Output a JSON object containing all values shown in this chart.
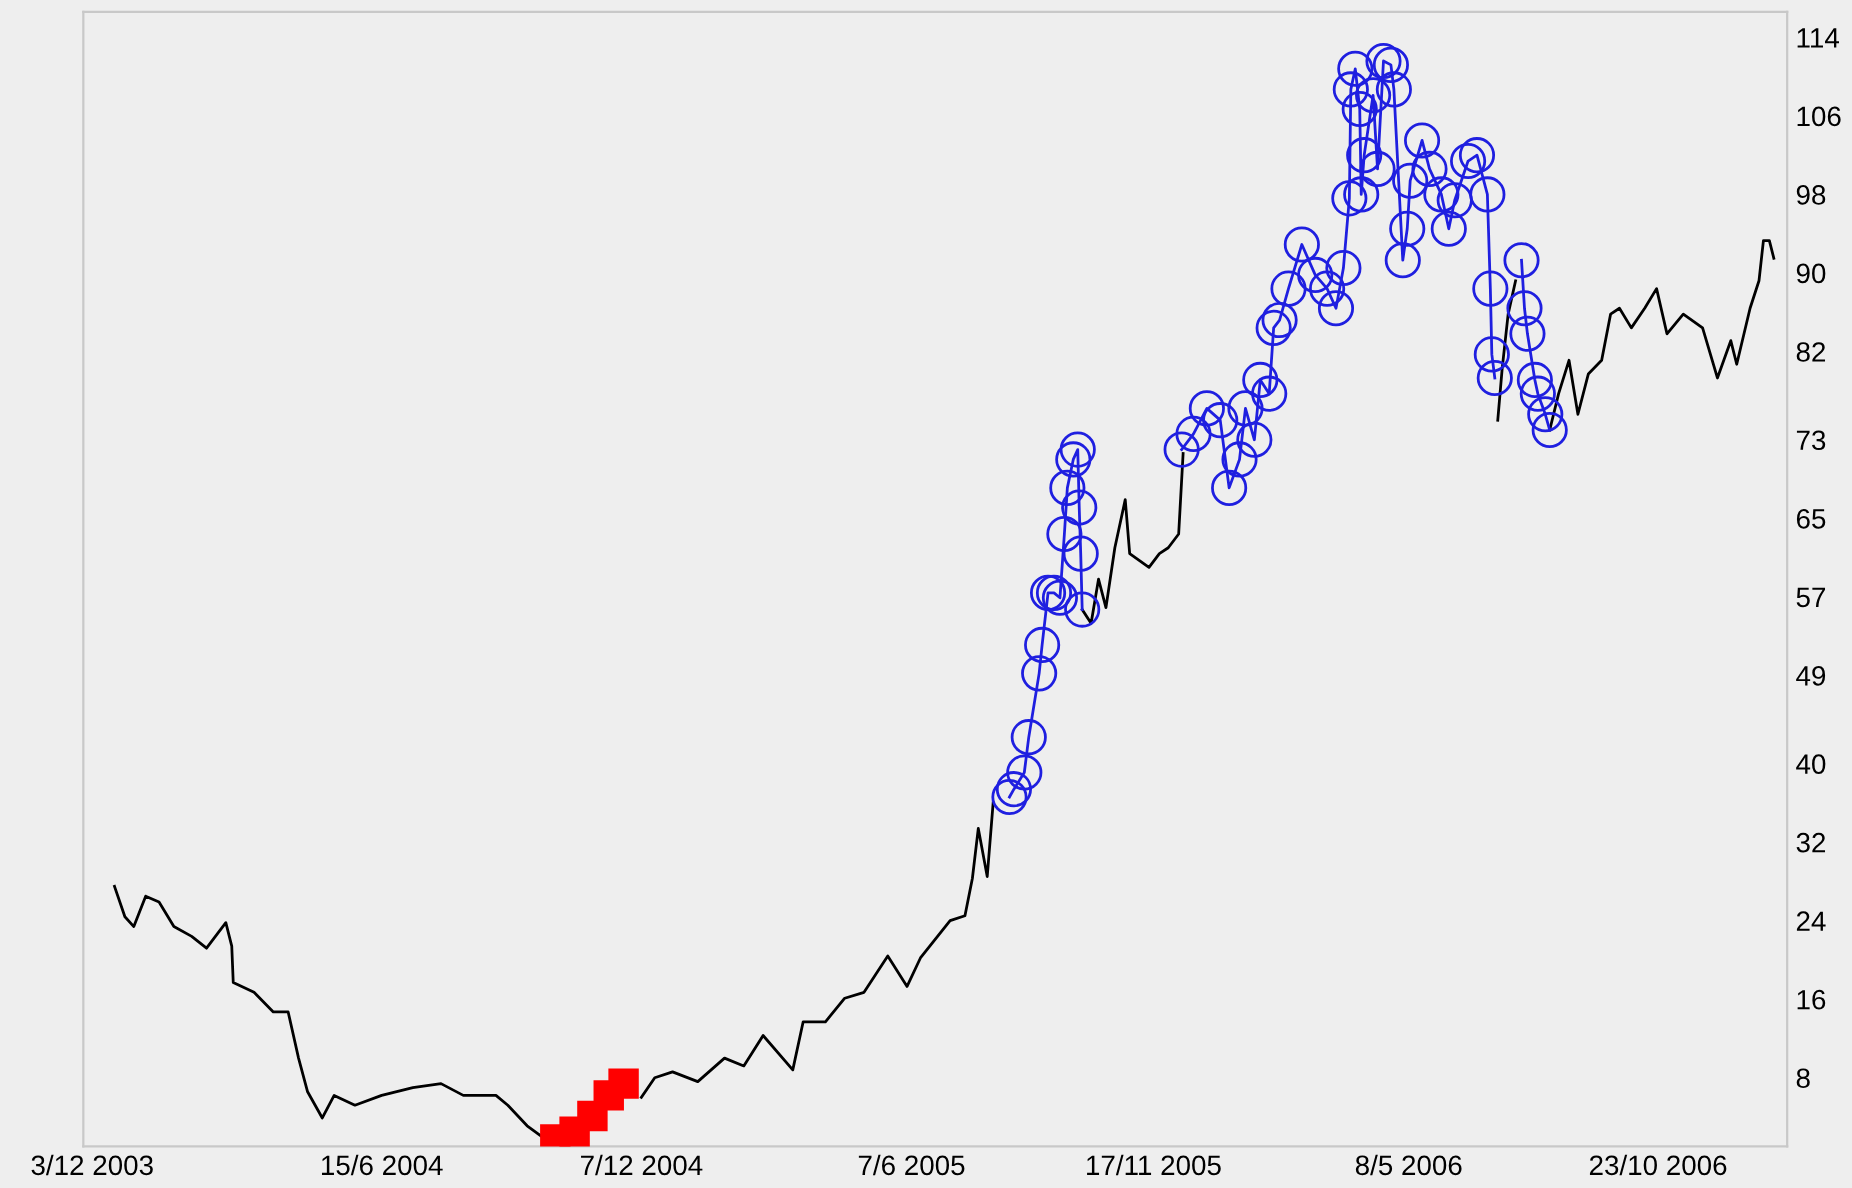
{
  "chart_data": {
    "type": "line",
    "xlim": [
      "2003-11-27",
      "2007-01-18"
    ],
    "ylim": [
      1.0,
      116.6
    ],
    "xticks": [
      {
        "value": "2003-12-03",
        "label": "3/12 2003"
      },
      {
        "value": "2004-06-15",
        "label": "15/6 2004"
      },
      {
        "value": "2004-12-07",
        "label": "7/12 2004"
      },
      {
        "value": "2005-06-07",
        "label": "7/6 2005"
      },
      {
        "value": "2005-11-17",
        "label": "17/11 2005"
      },
      {
        "value": "2006-05-08",
        "label": "8/5 2006"
      },
      {
        "value": "2006-10-23",
        "label": "23/10 2006"
      }
    ],
    "yticks": [
      8,
      16,
      24,
      32,
      40,
      49,
      57,
      65,
      73,
      82,
      90,
      98,
      106,
      114
    ],
    "grid": false,
    "legend": false,
    "series": [
      {
        "color": "#000000",
        "marker": "none",
        "x": [
          "2003-12-18",
          "2003-12-25",
          "2003-12-31",
          "2004-01-08",
          "2004-01-17",
          "2004-01-27",
          "2004-02-08",
          "2004-02-18",
          "2004-03-02",
          "2004-03-06",
          "2004-03-07",
          "2004-03-21",
          "2004-04-03",
          "2004-04-13",
          "2004-04-20",
          "2004-04-26",
          "2004-05-06",
          "2004-05-14",
          "2004-05-28",
          "2004-06-15",
          "2004-07-06",
          "2004-07-25",
          "2004-08-09",
          "2004-08-31",
          "2004-09-08",
          "2004-09-21",
          "2004-09-30",
          "2004-11-24",
          "2004-12-07",
          "2004-12-16",
          "2004-12-28",
          "2005-01-14",
          "2005-02-01",
          "2005-02-14",
          "2005-02-27",
          "2005-03-19",
          "2005-03-26",
          "2005-04-10",
          "2005-04-23",
          "2005-05-06",
          "2005-05-22",
          "2005-06-04",
          "2005-06-13",
          "2005-07-03",
          "2005-07-13",
          "2005-07-18",
          "2005-07-22",
          "2005-07-28",
          "2005-08-01",
          "2005-08-12",
          "2005-09-30",
          "2005-10-06",
          "2005-10-11",
          "2005-10-16",
          "2005-10-22",
          "2005-10-29",
          "2005-11-01",
          "2005-11-14",
          "2005-11-21",
          "2005-11-27",
          "2005-12-04",
          "2005-12-07",
          "2006-07-05",
          "2006-07-07",
          "2006-07-10",
          "2006-07-14",
          "2006-07-19",
          "2006-07-23",
          "2006-08-11",
          "2006-08-17",
          "2006-08-24",
          "2006-08-30",
          "2006-09-06",
          "2006-09-15",
          "2006-09-21",
          "2006-09-27",
          "2006-10-05",
          "2006-10-14",
          "2006-10-22",
          "2006-10-29",
          "2006-11-09",
          "2006-11-22",
          "2006-12-02",
          "2006-12-11",
          "2006-12-15",
          "2006-12-24",
          "2006-12-30",
          "2007-01-02",
          "2007-01-06",
          "2007-01-09"
        ],
        "values": [
          27.5,
          24.4,
          23.4,
          26.5,
          25.9,
          23.4,
          22.4,
          21.2,
          23.8,
          21.4,
          17.7,
          16.7,
          14.7,
          14.7,
          10.0,
          6.6,
          3.9,
          6.2,
          5.2,
          6.2,
          7.0,
          7.4,
          6.2,
          6.2,
          5.2,
          3.1,
          2.1,
          null,
          6.0,
          8.0,
          8.6,
          7.6,
          10.0,
          9.2,
          12.3,
          8.8,
          13.7,
          13.7,
          16.1,
          16.7,
          20.4,
          17.3,
          20.2,
          24.0,
          24.5,
          28.3,
          33.4,
          28.5,
          36.0,
          null,
          55.7,
          54.3,
          58.8,
          55.9,
          62.0,
          66.9,
          61.4,
          60.0,
          61.4,
          62.0,
          63.4,
          71.6,
          null,
          75.0,
          80.3,
          85.8,
          89.2,
          null,
          74.0,
          77.7,
          81.1,
          75.6,
          79.7,
          81.1,
          85.8,
          86.4,
          84.4,
          86.4,
          88.4,
          83.8,
          85.8,
          84.4,
          79.3,
          83.1,
          80.7,
          86.4,
          89.2,
          93.3,
          93.3,
          91.5
        ]
      },
      {
        "color": "#1f1fe0",
        "marker": "circle",
        "x": [
          "2005-08-12",
          "2005-08-15",
          "2005-08-22",
          "2005-08-25",
          "2005-09-01",
          "2005-09-03",
          "2005-09-07",
          "2005-09-11",
          "2005-09-15",
          "2005-09-18",
          "2005-09-20",
          "2005-09-24",
          "2005-09-27",
          "2005-09-28",
          "2005-09-29",
          "2005-09-30",
          "2005-10-01",
          "2005-12-06",
          "2005-12-14",
          "2005-12-23",
          "2006-01-01",
          "2006-01-07",
          "2006-01-14",
          "2006-01-18",
          "2006-01-24",
          "2006-01-28",
          "2006-02-03",
          "2006-02-06",
          "2006-02-10",
          "2006-02-16",
          "2006-02-25",
          "2006-03-06",
          "2006-03-14",
          "2006-03-20",
          "2006-03-25",
          "2006-03-29",
          "2006-03-30",
          "2006-04-02",
          "2006-04-05",
          "2006-04-06",
          "2006-04-08",
          "2006-04-14",
          "2006-04-17",
          "2006-04-21",
          "2006-04-26",
          "2006-04-28",
          "2006-05-04",
          "2006-05-07",
          "2006-05-09",
          "2006-05-17",
          "2006-05-22",
          "2006-05-30",
          "2006-06-04",
          "2006-06-08",
          "2006-06-17",
          "2006-06-23",
          "2006-06-30",
          "2006-07-02",
          "2006-07-03",
          "2006-07-05",
          "2006-07-06",
          "2006-07-23",
          "2006-07-25",
          "2006-07-27",
          "2006-08-01",
          "2006-08-03",
          "2006-08-08",
          "2006-08-11"
        ],
        "values": [
          36.6,
          37.4,
          39.1,
          42.7,
          49.2,
          52.1,
          57.4,
          57.4,
          56.9,
          63.4,
          68.1,
          71.0,
          72.0,
          66.1,
          61.4,
          55.7,
          null,
          72.0,
          73.6,
          76.2,
          75.0,
          68.1,
          71.0,
          76.2,
          73.0,
          79.1,
          77.7,
          84.4,
          85.2,
          88.4,
          92.9,
          89.8,
          88.4,
          86.4,
          90.5,
          97.6,
          108.7,
          110.8,
          106.7,
          98.0,
          102.0,
          108.1,
          100.6,
          111.6,
          111.2,
          108.7,
          91.3,
          94.5,
          99.4,
          103.5,
          100.6,
          98.0,
          94.5,
          97.4,
          101.4,
          102.0,
          98.0,
          88.4,
          81.7,
          79.3,
          null,
          91.3,
          86.4,
          83.8,
          79.1,
          77.7,
          75.6,
          74.0
        ]
      },
      {
        "type": "scatter",
        "color": "#ff0000",
        "marker": "square",
        "x": [
          "2004-10-10",
          "2004-10-23",
          "2004-11-04",
          "2004-11-15",
          "2004-11-25"
        ],
        "values": [
          1.7,
          2.5,
          4.1,
          6.2,
          7.4
        ]
      }
    ]
  }
}
